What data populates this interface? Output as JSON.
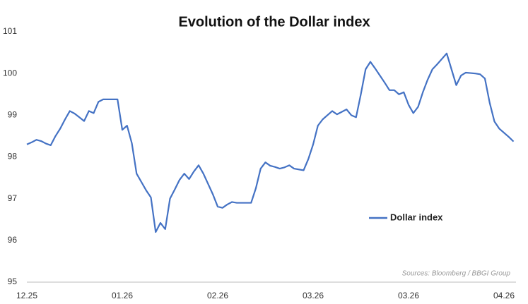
{
  "chart_data": {
    "type": "line",
    "title": "Evolution of the Dollar index",
    "annotation": "Sources: Bloomberg / BBGI Group",
    "categories": [
      "12.25",
      null,
      null,
      null,
      null,
      null,
      null,
      null,
      null,
      null,
      null,
      null,
      null,
      null,
      null,
      null,
      null,
      null,
      null,
      null,
      "01.26",
      null,
      null,
      null,
      null,
      null,
      null,
      null,
      null,
      null,
      null,
      null,
      null,
      null,
      null,
      null,
      null,
      null,
      null,
      null,
      "02.26",
      null,
      null,
      null,
      null,
      null,
      null,
      null,
      null,
      null,
      null,
      null,
      null,
      null,
      null,
      null,
      null,
      null,
      null,
      null,
      "03.26",
      null,
      null,
      null,
      null,
      null,
      null,
      null,
      null,
      null,
      null,
      null,
      null,
      null,
      null,
      null,
      null,
      null,
      null,
      null,
      "03.26",
      null,
      null,
      null,
      null,
      null,
      null,
      null,
      null,
      null,
      null,
      null,
      null,
      null,
      null,
      null,
      null,
      null,
      null,
      null,
      "04.26",
      null,
      null
    ],
    "series": [
      {
        "name": "Dollar index",
        "color": "#4472c4",
        "values": [
          98.3,
          98.35,
          98.41,
          98.38,
          98.32,
          98.28,
          98.5,
          98.68,
          98.9,
          99.1,
          99.04,
          98.95,
          98.86,
          99.1,
          99.05,
          99.32,
          99.38,
          99.38,
          99.38,
          99.38,
          98.65,
          98.75,
          98.33,
          97.6,
          97.4,
          97.2,
          97.03,
          96.2,
          96.42,
          96.27,
          97.0,
          97.22,
          97.45,
          97.6,
          97.47,
          97.65,
          97.8,
          97.6,
          97.35,
          97.1,
          96.81,
          96.78,
          96.86,
          96.92,
          96.9,
          96.9,
          96.9,
          96.9,
          97.25,
          97.72,
          97.87,
          97.79,
          97.76,
          97.72,
          97.75,
          97.8,
          97.72,
          97.7,
          97.68,
          97.95,
          98.3,
          98.75,
          98.9,
          99.0,
          99.1,
          99.02,
          99.08,
          99.14,
          99.0,
          98.95,
          99.5,
          100.1,
          100.28,
          100.12,
          99.95,
          99.78,
          99.6,
          99.6,
          99.5,
          99.55,
          99.25,
          99.05,
          99.2,
          99.55,
          99.85,
          100.1,
          100.22,
          100.35,
          100.48,
          100.1,
          99.72,
          99.95,
          100.02,
          100.01,
          100.0,
          99.98,
          99.88,
          99.3,
          98.85,
          98.68,
          98.58,
          98.48,
          98.37
        ]
      }
    ],
    "ylim": [
      95,
      101
    ],
    "yticks": [
      95,
      96,
      97,
      98,
      99,
      100,
      101
    ],
    "grid": false,
    "legend": "center-right"
  }
}
